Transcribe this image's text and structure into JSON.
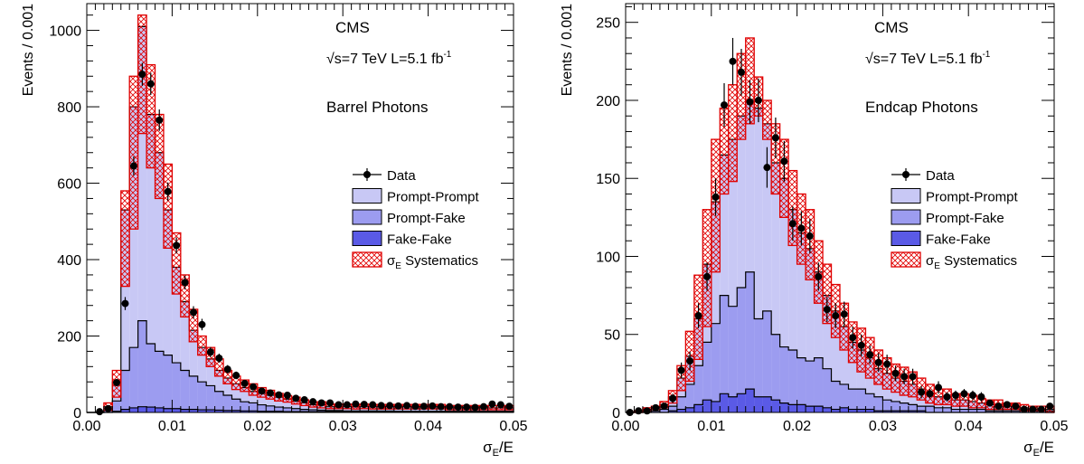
{
  "chart_data": [
    {
      "type": "histogram",
      "experiment": "CMS",
      "energy_label": "√s=7 TeV L=5.1 fb",
      "energy_sup": "-1",
      "region_label": "Barrel Photons",
      "xlabel_main": "σ",
      "xlabel_sub": "E",
      "xlabel_tail": "/E",
      "ylabel": "Events / 0.001",
      "xlim": [
        0,
        0.05
      ],
      "ylim": [
        0,
        1070
      ],
      "x_ticks": [
        0,
        0.01,
        0.02,
        0.03,
        0.04,
        0.05
      ],
      "x_tick_labels": [
        "0.00",
        "0.01",
        "0.02",
        "0.03",
        "0.04",
        "0.05"
      ],
      "y_ticks": [
        0,
        200,
        400,
        600,
        800,
        1000
      ],
      "y_tick_labels": [
        "0",
        "200",
        "400",
        "600",
        "800",
        "1000"
      ],
      "bin_edges": [
        0,
        0.05
      ],
      "bin_width": 0.001,
      "stack_total": [
        0,
        0,
        15,
        80,
        530,
        800,
        1010,
        780,
        680,
        530,
        380,
        290,
        215,
        170,
        140,
        110,
        90,
        75,
        65,
        55,
        50,
        45,
        40,
        35,
        30,
        25,
        20,
        20,
        15,
        15,
        15,
        15,
        15,
        15,
        15,
        15,
        15,
        15,
        15,
        15,
        15,
        15,
        12,
        12,
        12,
        12,
        12,
        12,
        12,
        12
      ],
      "prompt_fake_plus_fake_fake": [
        0,
        0,
        5,
        30,
        110,
        170,
        240,
        180,
        160,
        150,
        130,
        110,
        95,
        80,
        70,
        55,
        45,
        35,
        28,
        25,
        20,
        17,
        14,
        12,
        10,
        8,
        7,
        6,
        5,
        5,
        4,
        4,
        4,
        4,
        4,
        4,
        3,
        3,
        3,
        3,
        3,
        3,
        3,
        3,
        3,
        3,
        3,
        3,
        3,
        3
      ],
      "fake_fake": [
        0,
        0,
        0,
        3,
        8,
        12,
        15,
        14,
        12,
        10,
        10,
        8,
        8,
        7,
        7,
        6,
        5,
        5,
        4,
        4,
        3,
        3,
        3,
        2,
        2,
        2,
        2,
        2,
        2,
        2,
        2,
        2,
        2,
        2,
        1,
        1,
        1,
        1,
        1,
        1,
        1,
        1,
        1,
        1,
        1,
        1,
        1,
        1,
        1,
        1
      ],
      "syst_low": [
        0,
        0,
        5,
        40,
        330,
        480,
        730,
        640,
        560,
        430,
        310,
        250,
        185,
        150,
        120,
        95,
        75,
        60,
        55,
        45,
        40,
        35,
        30,
        27,
        22,
        18,
        14,
        12,
        10,
        10,
        10,
        9,
        10,
        9,
        9,
        9,
        9,
        9,
        9,
        9,
        9,
        9,
        7,
        7,
        7,
        7,
        7,
        7,
        7,
        7
      ],
      "syst_high": [
        0,
        0,
        25,
        110,
        580,
        880,
        1040,
        910,
        780,
        650,
        470,
        360,
        270,
        200,
        170,
        140,
        110,
        95,
        85,
        75,
        65,
        58,
        50,
        44,
        40,
        33,
        28,
        28,
        22,
        22,
        22,
        21,
        22,
        21,
        21,
        21,
        21,
        21,
        21,
        21,
        21,
        21,
        18,
        18,
        18,
        18,
        18,
        18,
        18,
        18
      ],
      "data_x": [
        0.0015,
        0.0025,
        0.0035,
        0.0045,
        0.0055,
        0.0065,
        0.0075,
        0.0085,
        0.0095,
        0.0105,
        0.0115,
        0.0125,
        0.0135,
        0.0145,
        0.0155,
        0.0165,
        0.0175,
        0.0185,
        0.0195,
        0.0205,
        0.0215,
        0.0225,
        0.0235,
        0.0245,
        0.0255,
        0.0265,
        0.0275,
        0.0285,
        0.0295,
        0.0305,
        0.0315,
        0.0325,
        0.0335,
        0.0345,
        0.0355,
        0.0365,
        0.0375,
        0.0385,
        0.0395,
        0.0405,
        0.0415,
        0.0425,
        0.0435,
        0.0445,
        0.0455,
        0.0465,
        0.0475,
        0.0485,
        0.0495
      ],
      "data_y": [
        2,
        10,
        78,
        285,
        645,
        885,
        860,
        765,
        578,
        437,
        340,
        262,
        230,
        158,
        142,
        113,
        97,
        76,
        67,
        56,
        51,
        46,
        45,
        37,
        33,
        28,
        25,
        25,
        20,
        20,
        22,
        21,
        20,
        18,
        18,
        17,
        18,
        16,
        16,
        17,
        15,
        15,
        14,
        14,
        13,
        15,
        22,
        20,
        16
      ],
      "data_err": [
        2,
        3,
        9,
        17,
        25,
        30,
        29,
        28,
        24,
        21,
        18,
        16,
        15,
        13,
        12,
        11,
        10,
        9,
        8,
        7,
        7,
        7,
        7,
        6,
        6,
        5,
        5,
        5,
        4,
        4,
        5,
        5,
        4,
        4,
        4,
        4,
        4,
        4,
        4,
        4,
        4,
        4,
        4,
        4,
        4,
        4,
        5,
        4,
        4
      ],
      "legend": [
        "Data",
        "Prompt-Prompt",
        "Prompt-Fake",
        "Fake-Fake"
      ],
      "legend_syst_main": "σ",
      "legend_syst_sub": "E",
      "legend_syst_tail": " Systematics",
      "colors": {
        "prompt_prompt": "#c8c8f5",
        "prompt_fake": "#9c9cf0",
        "fake_fake": "#5a5ae6",
        "syst": "#e00000",
        "data": "#000000"
      }
    },
    {
      "type": "histogram",
      "experiment": "CMS",
      "energy_label": "√s=7 TeV L=5.1 fb",
      "energy_sup": "-1",
      "region_label": "Endcap Photons",
      "xlabel_main": "σ",
      "xlabel_sub": "E",
      "xlabel_tail": "/E",
      "ylabel": "Events / 0.001",
      "xlim": [
        0,
        0.05
      ],
      "ylim": [
        0,
        262
      ],
      "x_ticks": [
        0,
        0.01,
        0.02,
        0.03,
        0.04,
        0.05
      ],
      "x_tick_labels": [
        "0.00",
        "0.01",
        "0.02",
        "0.03",
        "0.04",
        "0.05"
      ],
      "y_ticks": [
        0,
        50,
        100,
        150,
        200,
        250
      ],
      "y_tick_labels": [
        "0",
        "50",
        "100",
        "150",
        "200",
        "250"
      ],
      "bin_edges": [
        0,
        0.05
      ],
      "bin_width": 0.001,
      "stack_total": [
        0,
        1,
        2,
        3,
        5,
        10,
        22,
        36,
        60,
        95,
        135,
        165,
        175,
        190,
        200,
        195,
        185,
        160,
        150,
        130,
        115,
        105,
        90,
        75,
        65,
        55,
        45,
        40,
        35,
        28,
        25,
        22,
        20,
        18,
        15,
        12,
        10,
        10,
        8,
        8,
        7,
        6,
        5,
        5,
        4,
        4,
        3,
        2,
        2,
        2
      ],
      "prompt_fake_plus_fake_fake": [
        0,
        0,
        1,
        1,
        2,
        4,
        10,
        18,
        30,
        45,
        57,
        75,
        68,
        80,
        90,
        60,
        65,
        50,
        42,
        40,
        35,
        33,
        35,
        28,
        20,
        18,
        15,
        15,
        12,
        10,
        8,
        7,
        6,
        5,
        4,
        4,
        3,
        3,
        2,
        2,
        2,
        2,
        1,
        1,
        1,
        1,
        1,
        1,
        1,
        1
      ],
      "fake_fake": [
        0,
        0,
        0,
        0,
        0,
        1,
        2,
        3,
        5,
        8,
        7,
        12,
        10,
        12,
        15,
        10,
        10,
        8,
        6,
        5,
        5,
        4,
        4,
        3,
        2,
        3,
        2,
        2,
        2,
        1,
        1,
        1,
        1,
        1,
        1,
        0,
        0,
        0,
        0,
        0,
        0,
        0,
        0,
        0,
        0,
        0,
        0,
        0,
        0,
        0
      ],
      "syst_low": [
        0,
        0,
        1,
        2,
        3,
        6,
        14,
        20,
        34,
        55,
        90,
        140,
        148,
        175,
        185,
        190,
        175,
        140,
        125,
        107,
        95,
        85,
        70,
        57,
        48,
        40,
        32,
        26,
        22,
        18,
        15,
        13,
        11,
        10,
        8,
        6,
        5,
        5,
        4,
        4,
        3,
        3,
        2,
        2,
        2,
        2,
        1,
        1,
        1,
        0
      ],
      "syst_high": [
        0,
        1,
        3,
        4,
        7,
        14,
        30,
        52,
        88,
        130,
        175,
        195,
        210,
        230,
        240,
        215,
        200,
        185,
        175,
        155,
        140,
        130,
        110,
        95,
        82,
        70,
        58,
        54,
        48,
        40,
        35,
        31,
        29,
        26,
        22,
        18,
        15,
        15,
        12,
        12,
        11,
        9,
        8,
        8,
        6,
        6,
        5,
        4,
        4,
        4
      ],
      "data_x": [
        0.0005,
        0.0015,
        0.0025,
        0.0035,
        0.0045,
        0.0055,
        0.0065,
        0.0075,
        0.0085,
        0.0095,
        0.0105,
        0.0115,
        0.0125,
        0.0135,
        0.0145,
        0.0155,
        0.0165,
        0.0175,
        0.0185,
        0.0195,
        0.0205,
        0.0215,
        0.0225,
        0.0235,
        0.0245,
        0.0255,
        0.0265,
        0.0275,
        0.0285,
        0.0295,
        0.0305,
        0.0315,
        0.0325,
        0.0335,
        0.0345,
        0.0355,
        0.0365,
        0.0375,
        0.0385,
        0.0395,
        0.0405,
        0.0415,
        0.0425,
        0.0435,
        0.0445,
        0.0455,
        0.0465,
        0.0475,
        0.0485,
        0.0495
      ],
      "data_y": [
        0,
        1,
        1,
        3,
        4,
        9,
        27,
        33,
        62,
        87,
        138,
        197,
        225,
        218,
        199,
        200,
        157,
        176,
        161,
        121,
        118,
        113,
        87,
        66,
        62,
        63,
        48,
        43,
        37,
        32,
        31,
        25,
        23,
        23,
        13,
        12,
        16,
        10,
        11,
        12,
        11,
        10,
        6,
        4,
        5,
        4,
        2,
        2,
        2,
        4
      ],
      "data_err": [
        0,
        1,
        1,
        2,
        2,
        3,
        5,
        6,
        8,
        9,
        12,
        14,
        15,
        15,
        14,
        14,
        13,
        13,
        13,
        11,
        11,
        11,
        9,
        8,
        8,
        8,
        7,
        7,
        6,
        6,
        6,
        5,
        5,
        5,
        4,
        3,
        4,
        3,
        3,
        3,
        3,
        3,
        2,
        2,
        2,
        2,
        1,
        1,
        1,
        2
      ],
      "legend": [
        "Data",
        "Prompt-Prompt",
        "Prompt-Fake",
        "Fake-Fake"
      ],
      "legend_syst_main": "σ",
      "legend_syst_sub": "E",
      "legend_syst_tail": " Systematics",
      "colors": {
        "prompt_prompt": "#c8c8f5",
        "prompt_fake": "#9c9cf0",
        "fake_fake": "#5a5ae6",
        "syst": "#e00000",
        "data": "#000000"
      }
    }
  ]
}
